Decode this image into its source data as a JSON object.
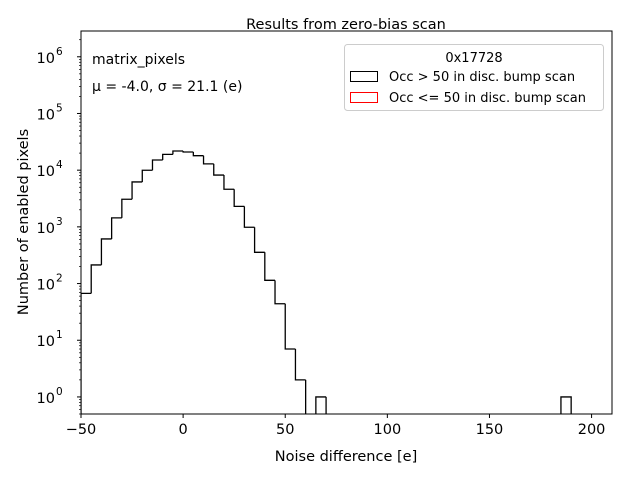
{
  "chart_data": {
    "type": "histogram",
    "title": "Results from zero-bias scan",
    "xlabel": "Noise difference [e]",
    "ylabel": "Number of enabled pixels",
    "xlim": [
      -50,
      210
    ],
    "ylim": [
      0.5,
      2850000
    ],
    "yscale": "log",
    "x_ticks": [
      -50,
      0,
      50,
      100,
      150,
      200
    ],
    "x_tick_labels": [
      "−50",
      "0",
      "50",
      "100",
      "150",
      "200"
    ],
    "y_ticks": [
      1,
      10,
      100,
      1000,
      10000,
      100000,
      1000000
    ],
    "y_tick_labels": [
      {
        "base": "10",
        "exp": "0"
      },
      {
        "base": "10",
        "exp": "1"
      },
      {
        "base": "10",
        "exp": "2"
      },
      {
        "base": "10",
        "exp": "3"
      },
      {
        "base": "10",
        "exp": "4"
      },
      {
        "base": "10",
        "exp": "5"
      },
      {
        "base": "10",
        "exp": "6"
      }
    ],
    "bin_width": 5,
    "bin_start": -50,
    "series": [
      {
        "name": "Occ > 50 in disc. bump scan",
        "color": "#000000",
        "values": [
          67,
          213,
          612,
          1440,
          3070,
          6200,
          9960,
          15100,
          19000,
          21800,
          20900,
          18000,
          12900,
          8200,
          4600,
          2300,
          985,
          356,
          114,
          44,
          7,
          2,
          0,
          1,
          0,
          0,
          0,
          0,
          0,
          0,
          0,
          0,
          0,
          0,
          0,
          0,
          0,
          0,
          0,
          0,
          0,
          0,
          0,
          0,
          0,
          0,
          0,
          1
        ]
      },
      {
        "name": "Occ <= 50 in disc. bump scan",
        "color": "#ff0000",
        "values": []
      }
    ],
    "legend": {
      "title": "0x17728",
      "placement": "top-right"
    },
    "annotations": [
      "matrix_pixels",
      "μ = -4.0, σ = 21.1 (e)"
    ]
  }
}
